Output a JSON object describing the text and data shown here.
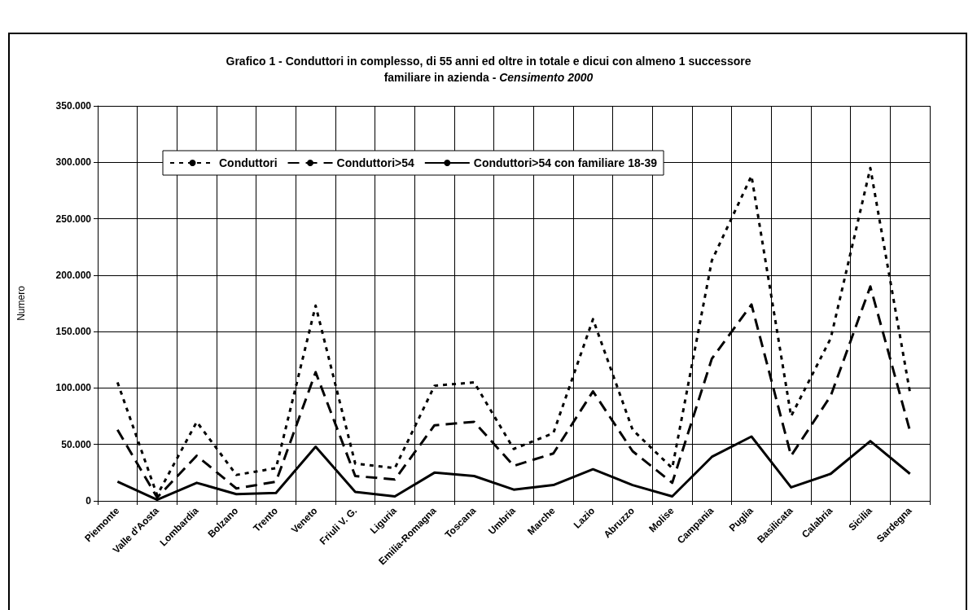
{
  "chart_data": {
    "type": "line",
    "title": "Grafico 1 - Conduttori in complesso, di 55 anni ed oltre in totale e dicui con almeno 1 successore\nfamiliare in azienda - ",
    "subtitle": "Censimento 2000",
    "ylabel": "Numero",
    "categories": [
      "Piemonte",
      "Valle d'Aosta",
      "Lombardia",
      "Bolzano",
      "Trento",
      "Veneto",
      "Friuli V. G.",
      "Liguria",
      "Emilia-Romagna",
      "Toscana",
      "Umbria",
      "Marche",
      "Lazio",
      "Abruzzo",
      "Molise",
      "Campania",
      "Puglia",
      "Basilicata",
      "Calabria",
      "Sicilia",
      "Sardegna"
    ],
    "series": [
      {
        "name": "Conduttori",
        "color": "#000000",
        "line_style": "dotted",
        "values": [
          105000,
          5000,
          70000,
          23000,
          29000,
          173000,
          33000,
          29000,
          102000,
          105000,
          46000,
          60000,
          161000,
          63000,
          29000,
          213000,
          288000,
          75000,
          144000,
          295000,
          96000
        ]
      },
      {
        "name": "Conduttori>54",
        "color": "#000000",
        "line_style": "dashed",
        "values": [
          63000,
          3000,
          40000,
          11000,
          17000,
          114000,
          22000,
          19000,
          67000,
          70000,
          31000,
          42000,
          97000,
          44000,
          16000,
          126000,
          174000,
          40000,
          93000,
          190000,
          62000
        ]
      },
      {
        "name": "Conduttori>54 con familiare 18-39",
        "color": "#000000",
        "line_style": "solid",
        "values": [
          17000,
          1000,
          16000,
          6000,
          7000,
          48000,
          8000,
          4000,
          25000,
          22000,
          10000,
          14000,
          28000,
          14000,
          4000,
          39000,
          57000,
          12000,
          24000,
          53000,
          24000
        ]
      }
    ],
    "ylim": [
      0,
      350000
    ],
    "yticks": [
      {
        "value": 0,
        "label": "0"
      },
      {
        "value": 50000,
        "label": "50.000"
      },
      {
        "value": 100000,
        "label": "100.000"
      },
      {
        "value": 150000,
        "label": "150.000"
      },
      {
        "value": 200000,
        "label": "200.000"
      },
      {
        "value": 250000,
        "label": "250.000"
      },
      {
        "value": 300000,
        "label": "300.000"
      },
      {
        "value": 350000,
        "label": "350.000"
      }
    ],
    "grid": true,
    "legend": "top left",
    "marker": "none"
  }
}
